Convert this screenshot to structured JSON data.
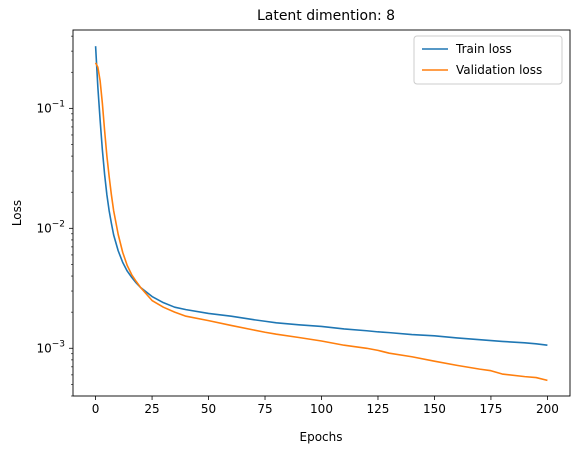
{
  "chart_data": {
    "type": "line",
    "title": "Latent dimention: 8",
    "xlabel": "Epochs",
    "ylabel": "Loss",
    "yscale": "log",
    "xlim": [
      -10,
      210
    ],
    "ylim": [
      0.0004,
      0.45
    ],
    "xticks": [
      {
        "value": 0,
        "label": "0"
      },
      {
        "value": 25,
        "label": "25"
      },
      {
        "value": 50,
        "label": "50"
      },
      {
        "value": 75,
        "label": "75"
      },
      {
        "value": 100,
        "label": "100"
      },
      {
        "value": 125,
        "label": "125"
      },
      {
        "value": 150,
        "label": "150"
      },
      {
        "value": 175,
        "label": "175"
      },
      {
        "value": 200,
        "label": "200"
      }
    ],
    "yticks": [
      {
        "value": 0.001,
        "base": "10",
        "exp": "−3"
      },
      {
        "value": 0.01,
        "base": "10",
        "exp": "−2"
      },
      {
        "value": 0.1,
        "base": "10",
        "exp": "−1"
      }
    ],
    "legend_position": "top-right",
    "grid": false,
    "series": [
      {
        "name": "Train loss",
        "color": "#1f77b4",
        "x": [
          0,
          1,
          2,
          3,
          4,
          5,
          6,
          7,
          8,
          10,
          12,
          14,
          16,
          18,
          20,
          25,
          30,
          35,
          40,
          50,
          60,
          70,
          75,
          80,
          90,
          100,
          110,
          120,
          125,
          130,
          140,
          150,
          160,
          170,
          175,
          180,
          190,
          195,
          200
        ],
        "y": [
          0.33,
          0.15,
          0.08,
          0.045,
          0.028,
          0.019,
          0.014,
          0.011,
          0.0088,
          0.0065,
          0.0052,
          0.0044,
          0.0039,
          0.0035,
          0.0032,
          0.0027,
          0.0024,
          0.0022,
          0.0021,
          0.00195,
          0.00185,
          0.00173,
          0.00168,
          0.00163,
          0.00157,
          0.00152,
          0.00145,
          0.0014,
          0.00137,
          0.00135,
          0.0013,
          0.00127,
          0.00122,
          0.00118,
          0.00116,
          0.00114,
          0.00111,
          0.00109,
          0.00106
        ]
      },
      {
        "name": "Validation loss",
        "color": "#ff7f0e",
        "x": [
          0,
          1,
          2,
          3,
          4,
          5,
          6,
          7,
          8,
          10,
          12,
          14,
          16,
          18,
          20,
          25,
          30,
          35,
          40,
          50,
          60,
          70,
          75,
          80,
          90,
          100,
          110,
          120,
          125,
          130,
          140,
          150,
          160,
          170,
          175,
          180,
          190,
          195,
          200
        ],
        "y": [
          0.24,
          0.22,
          0.17,
          0.11,
          0.065,
          0.04,
          0.027,
          0.019,
          0.014,
          0.0089,
          0.0063,
          0.0049,
          0.0041,
          0.0036,
          0.0032,
          0.0025,
          0.0022,
          0.002,
          0.00185,
          0.0017,
          0.00155,
          0.00142,
          0.00136,
          0.00131,
          0.00123,
          0.00115,
          0.00106,
          0.001,
          0.00096,
          0.00091,
          0.00085,
          0.00078,
          0.00072,
          0.00067,
          0.00065,
          0.00061,
          0.00058,
          0.00057,
          0.00054
        ]
      }
    ]
  }
}
